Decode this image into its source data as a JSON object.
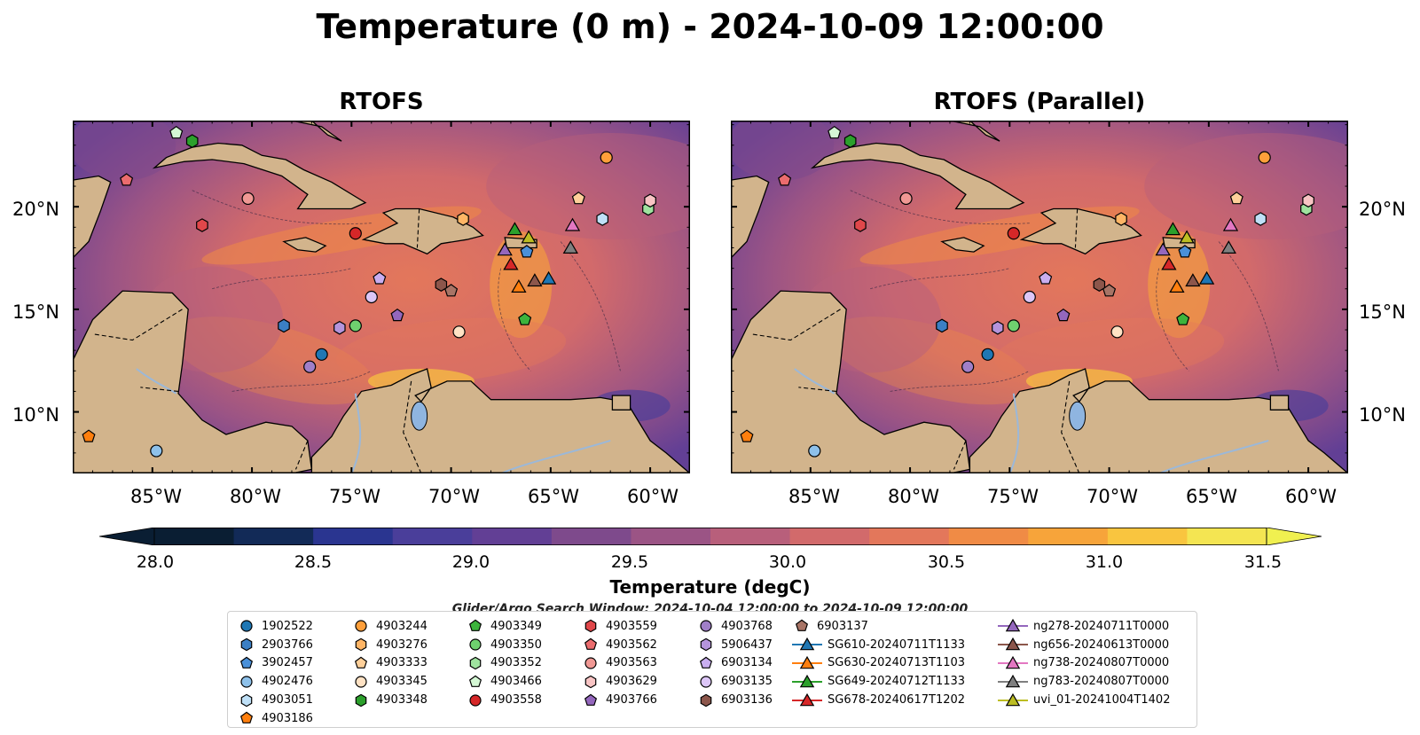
{
  "title": "Temperature (0 m) - 2024-10-09 12:00:00",
  "panels": [
    {
      "name": "RTOFS"
    },
    {
      "name": "RTOFS (Parallel)"
    }
  ],
  "map_extent": {
    "lon": [
      -89,
      -58
    ],
    "lat": [
      7,
      24.2
    ]
  },
  "lon_ticks": [
    "85°W",
    "80°W",
    "75°W",
    "70°W",
    "65°W",
    "60°W"
  ],
  "lat_ticks": [
    "20°N",
    "15°N",
    "10°N"
  ],
  "colorbar": {
    "label": "Temperature (degC)",
    "ticks": [
      "28.0",
      "28.5",
      "29.0",
      "29.5",
      "30.0",
      "30.5",
      "31.0",
      "31.5"
    ],
    "colors": [
      "#0a1e33",
      "#122a57",
      "#2a3590",
      "#4a3e9a",
      "#623f95",
      "#7e4a8c",
      "#9b5485",
      "#b85f7b",
      "#d26a6b",
      "#e3775b",
      "#f08b45",
      "#f7a43a",
      "#f9c53f",
      "#f4e552"
    ],
    "extend_max_color": "#f0f050",
    "extend_min_color": "#0a1e33"
  },
  "search_window": "Glider/Argo Search Window: 2024-10-04 12:00:00 to 2024-10-09 12:00:00",
  "legend": [
    {
      "label": "1902522",
      "shape": "circle",
      "color": "#1f77b4"
    },
    {
      "label": "2903766",
      "shape": "hexagon",
      "color": "#3b7fc4"
    },
    {
      "label": "3902457",
      "shape": "pentagon",
      "color": "#4a90d9"
    },
    {
      "label": "4902476",
      "shape": "circle",
      "color": "#8ec1ea"
    },
    {
      "label": "4903051",
      "shape": "hexagon",
      "color": "#bfe0f7"
    },
    {
      "label": "4903186",
      "shape": "pentagon",
      "color": "#ff7f0e"
    },
    {
      "label": "4903244",
      "shape": "circle",
      "color": "#ff9f3a"
    },
    {
      "label": "4903276",
      "shape": "hexagon",
      "color": "#ffb565"
    },
    {
      "label": "4903333",
      "shape": "pentagon",
      "color": "#ffd09a"
    },
    {
      "label": "4903345",
      "shape": "circle",
      "color": "#ffe2c4"
    },
    {
      "label": "4903348",
      "shape": "hexagon",
      "color": "#2ca02c"
    },
    {
      "label": "4903349",
      "shape": "pentagon",
      "color": "#3cb43c"
    },
    {
      "label": "4903350",
      "shape": "circle",
      "color": "#6fd16f"
    },
    {
      "label": "4903352",
      "shape": "hexagon",
      "color": "#9fe39f"
    },
    {
      "label": "4903466",
      "shape": "pentagon",
      "color": "#d4f7d4"
    },
    {
      "label": "4903558",
      "shape": "circle",
      "color": "#d62728"
    },
    {
      "label": "4903559",
      "shape": "hexagon",
      "color": "#e0474a"
    },
    {
      "label": "4903562",
      "shape": "pentagon",
      "color": "#eb6c6e"
    },
    {
      "label": "4903563",
      "shape": "circle",
      "color": "#f09894"
    },
    {
      "label": "4903629",
      "shape": "hexagon",
      "color": "#f8c4c4"
    },
    {
      "label": "4903766",
      "shape": "pentagon",
      "color": "#9467bd"
    },
    {
      "label": "4903768",
      "shape": "circle",
      "color": "#a07fc8"
    },
    {
      "label": "5906437",
      "shape": "hexagon",
      "color": "#b594db"
    },
    {
      "label": "6903134",
      "shape": "pentagon",
      "color": "#c9aef0"
    },
    {
      "label": "6903135",
      "shape": "circle",
      "color": "#dcc6f7"
    },
    {
      "label": "6903136",
      "shape": "hexagon",
      "color": "#8c564b"
    },
    {
      "label": "6903137",
      "shape": "pentagon",
      "color": "#a87466"
    },
    {
      "label": "SG610-20240711T1133",
      "shape": "triangle-line",
      "color": "#1f77b4"
    },
    {
      "label": "SG630-20240713T1103",
      "shape": "triangle-line",
      "color": "#ff7f0e"
    },
    {
      "label": "SG649-20240712T1133",
      "shape": "triangle-line",
      "color": "#2ca02c"
    },
    {
      "label": "SG678-20240617T1202",
      "shape": "triangle-line",
      "color": "#d62728"
    },
    {
      "label": "ng278-20240711T0000",
      "shape": "triangle-line",
      "color": "#9467bd"
    },
    {
      "label": "ng656-20240613T0000",
      "shape": "triangle-line",
      "color": "#8c564b"
    },
    {
      "label": "ng738-20240807T0000",
      "shape": "triangle-line",
      "color": "#e377c2"
    },
    {
      "label": "ng783-20240807T0000",
      "shape": "triangle-line",
      "color": "#7f7f7f"
    },
    {
      "label": "uvi_01-20241004T1402",
      "shape": "triangle-line",
      "color": "#bcbd22"
    }
  ],
  "platforms": [
    {
      "id": "1902522",
      "lon": -76.5,
      "lat": 12.8
    },
    {
      "id": "2903766",
      "lon": -78.4,
      "lat": 14.2
    },
    {
      "id": "3902457",
      "lon": -66.2,
      "lat": 17.8
    },
    {
      "id": "4902476",
      "lon": -84.8,
      "lat": 8.1
    },
    {
      "id": "4903051",
      "lon": -62.4,
      "lat": 19.4
    },
    {
      "id": "4903186",
      "lon": -88.2,
      "lat": 8.8
    },
    {
      "id": "4903244",
      "lon": -62.2,
      "lat": 22.4
    },
    {
      "id": "4903276",
      "lon": -69.4,
      "lat": 19.4
    },
    {
      "id": "4903333",
      "lon": -63.6,
      "lat": 20.4
    },
    {
      "id": "4903345",
      "lon": -69.6,
      "lat": 13.9
    },
    {
      "id": "4903348",
      "lon": -83.0,
      "lat": 23.2
    },
    {
      "id": "4903349",
      "lon": -66.3,
      "lat": 14.5
    },
    {
      "id": "4903350",
      "lon": -74.8,
      "lat": 14.2
    },
    {
      "id": "4903352",
      "lon": -60.1,
      "lat": 19.9
    },
    {
      "id": "4903466",
      "lon": -83.8,
      "lat": 23.6
    },
    {
      "id": "4903558",
      "lon": -74.8,
      "lat": 18.7
    },
    {
      "id": "4903559",
      "lon": -82.5,
      "lat": 19.1
    },
    {
      "id": "4903562",
      "lon": -86.3,
      "lat": 21.3
    },
    {
      "id": "4903563",
      "lon": -80.2,
      "lat": 20.4
    },
    {
      "id": "4903629",
      "lon": -60.0,
      "lat": 20.3
    },
    {
      "id": "4903766",
      "lon": -72.7,
      "lat": 14.7
    },
    {
      "id": "4903768",
      "lon": -77.1,
      "lat": 12.2
    },
    {
      "id": "5906437",
      "lon": -75.6,
      "lat": 14.1
    },
    {
      "id": "6903134",
      "lon": -73.6,
      "lat": 16.5
    },
    {
      "id": "6903135",
      "lon": -74.0,
      "lat": 15.6
    },
    {
      "id": "6903136",
      "lon": -70.5,
      "lat": 16.2
    },
    {
      "id": "6903137",
      "lon": -70.0,
      "lat": 15.9
    },
    {
      "id": "SG610-20240711T1133",
      "lon": -65.1,
      "lat": 16.5
    },
    {
      "id": "SG630-20240713T1103",
      "lon": -66.6,
      "lat": 16.1
    },
    {
      "id": "SG649-20240712T1133",
      "lon": -66.8,
      "lat": 18.9
    },
    {
      "id": "SG678-20240617T1202",
      "lon": -67.0,
      "lat": 17.2
    },
    {
      "id": "ng278-20240711T0000",
      "lon": -67.3,
      "lat": 17.9
    },
    {
      "id": "ng656-20240613T0000",
      "lon": -65.8,
      "lat": 16.4
    },
    {
      "id": "ng738-20240807T0000",
      "lon": -63.9,
      "lat": 19.1
    },
    {
      "id": "ng783-20240807T0000",
      "lon": -64.0,
      "lat": 18.0
    },
    {
      "id": "uvi_01-20241004T1402",
      "lon": -66.1,
      "lat": 18.5
    }
  ],
  "parallel_shift": [
    {
      "id": "1902522",
      "lon": -76.1,
      "lat": 12.8
    },
    {
      "id": "4903766",
      "lon": -72.3,
      "lat": 14.7
    },
    {
      "id": "6903134",
      "lon": -73.2,
      "lat": 16.5
    }
  ]
}
